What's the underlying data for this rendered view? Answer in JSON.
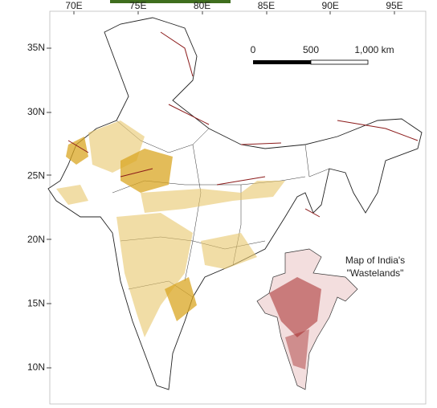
{
  "map": {
    "lon_ticks": [
      "70E",
      "75E",
      "80E",
      "85E",
      "90E",
      "95E"
    ],
    "lat_ticks": [
      "35N",
      "30N",
      "25N",
      "20N",
      "15N",
      "10N"
    ],
    "scale_bar": {
      "labels": [
        "0",
        "500",
        "1,000 km"
      ]
    },
    "inset": {
      "caption": [
        "Map of India's",
        "\"Wastelands\""
      ]
    }
  }
}
